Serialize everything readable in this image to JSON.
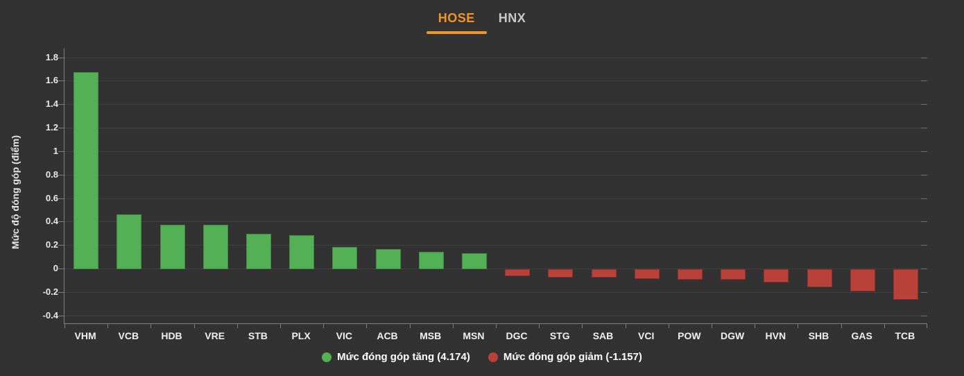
{
  "page": {
    "background": "#323232"
  },
  "tabs": [
    {
      "label": "HOSE",
      "active": true
    },
    {
      "label": "HNX",
      "active": false
    }
  ],
  "y_axis_title": "Mức độ đóng góp (điểm)",
  "legend": [
    {
      "label": "Mức đóng góp tăng (4.174)",
      "color": "#54b054"
    },
    {
      "label": "Mức đóng góp giảm (-1.157)",
      "color": "#b8413a"
    }
  ],
  "colors": {
    "background": "#323232",
    "grid": "#414141",
    "axis": "#7f7f7f",
    "text": "#e9e9e9",
    "positive": "#54b054",
    "negative": "#b8413a",
    "active_tab": "#f09527",
    "inactive_tab": "#c9c9c9"
  },
  "chart_data": {
    "type": "bar",
    "title": "",
    "xlabel": "",
    "ylabel": "Mức độ đóng góp (điểm)",
    "categories": [
      "VHM",
      "VCB",
      "HDB",
      "VRE",
      "STB",
      "PLX",
      "VIC",
      "ACB",
      "MSB",
      "MSN",
      "DGC",
      "STG",
      "SAB",
      "VCI",
      "POW",
      "DGW",
      "HVN",
      "SHB",
      "GAS",
      "TCB"
    ],
    "values": [
      1.68,
      0.47,
      0.38,
      0.38,
      0.3,
      0.29,
      0.19,
      0.17,
      0.15,
      0.14,
      -0.06,
      -0.07,
      -0.07,
      -0.08,
      -0.09,
      -0.09,
      -0.11,
      -0.15,
      -0.19,
      -0.26
    ],
    "ylim": [
      -0.46,
      1.88
    ],
    "yticks": [
      1.8,
      1.6,
      1.4,
      1.2,
      1,
      0.8,
      0.6,
      0.4,
      0.2,
      0,
      -0.2,
      -0.4
    ],
    "ytick_labels": [
      "1.8",
      "1.6",
      "1.4",
      "1.2",
      "1",
      "0.8",
      "0.6",
      "0.4",
      "0.2",
      "0",
      "-0.2",
      "-0.4"
    ],
    "grid": true,
    "legend_position": "bottom",
    "positive_total": 4.174,
    "negative_total": -1.157
  }
}
